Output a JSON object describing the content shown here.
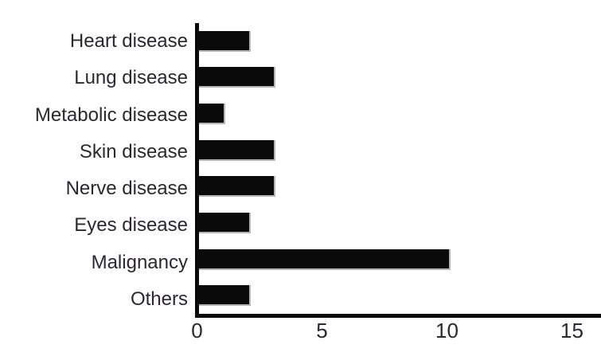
{
  "chart_data": {
    "type": "bar",
    "orientation": "horizontal",
    "title": "",
    "xlabel": "",
    "ylabel": "",
    "categories": [
      "Heart disease",
      "Lung disease",
      "Metabolic disease",
      "Skin disease",
      "Nerve disease",
      "Eyes disease",
      "Malignancy",
      "Others"
    ],
    "values": [
      2,
      3,
      1,
      3,
      3,
      2,
      10,
      2
    ],
    "xticks": [
      0,
      5,
      10,
      15
    ],
    "xlim": [
      0,
      17
    ],
    "grid": false,
    "legend": null,
    "bar_color": "#0b0a0b",
    "axis_color": "#0b0a0b",
    "text_color": "#2b2733"
  }
}
